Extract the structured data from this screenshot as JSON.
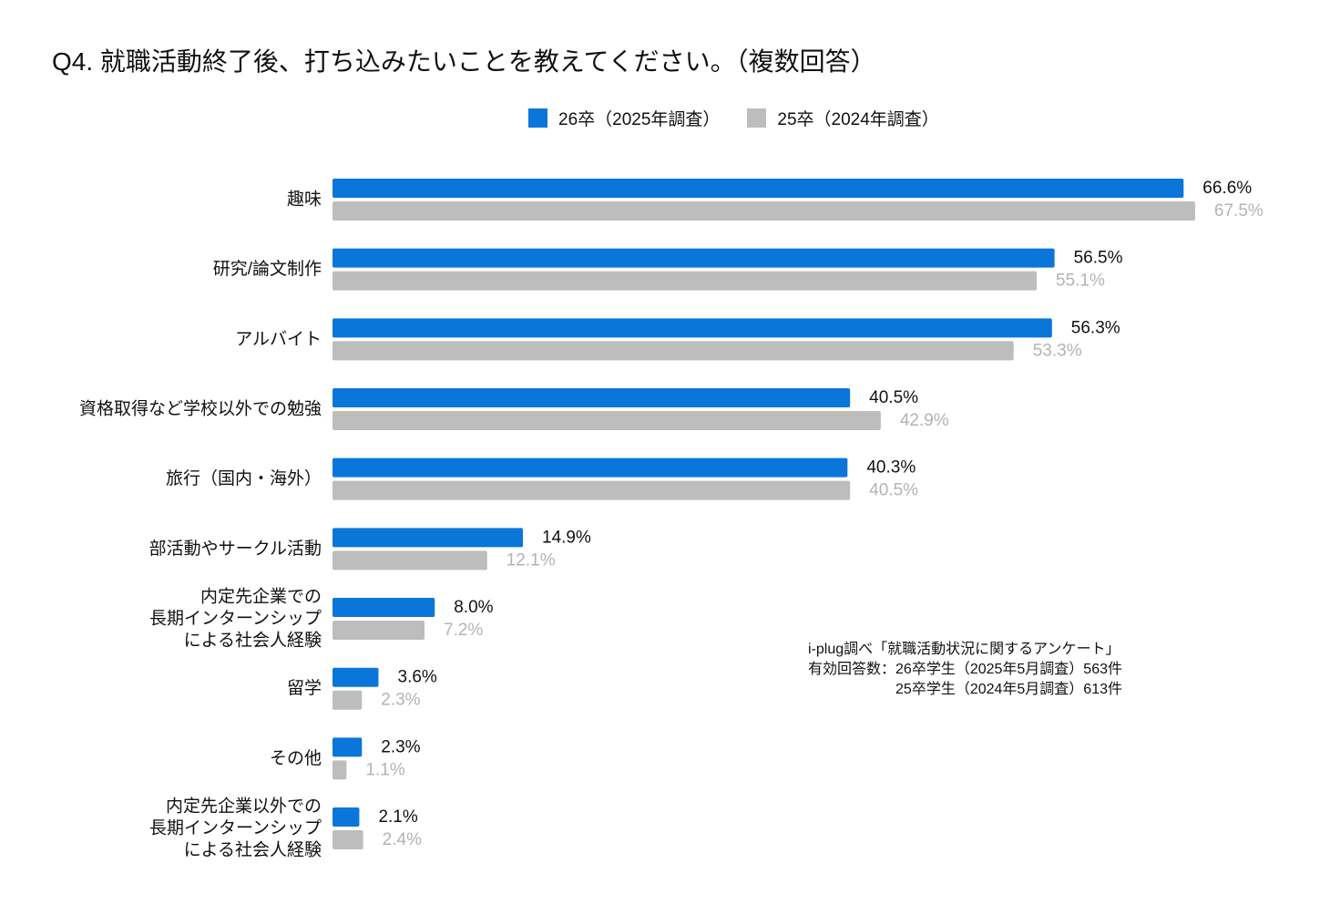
{
  "chart_data": {
    "type": "bar",
    "orientation": "horizontal",
    "title": "Q4. 就職活動終了後、打ち込みたいことを教えてください。（複数回答）",
    "xlabel": "",
    "ylabel": "",
    "xlim": [
      0,
      70
    ],
    "grid": false,
    "legend": "top",
    "value_suffix": "%",
    "categories": [
      [
        "趣味"
      ],
      [
        "研究/論文制作"
      ],
      [
        "アルバイト"
      ],
      [
        "資格取得など学校以外での勉強"
      ],
      [
        "旅行（国内・海外）"
      ],
      [
        "部活動やサークル活動"
      ],
      [
        "内定先企業での",
        "長期インターンシップ",
        "による社会人経験"
      ],
      [
        "留学"
      ],
      [
        "その他"
      ],
      [
        "内定先企業以外での",
        "長期インターンシップ",
        "による社会人経験"
      ]
    ],
    "series": [
      {
        "name": "26卒（2025年調査）",
        "values": [
          66.6,
          56.5,
          56.3,
          40.5,
          40.3,
          14.9,
          8.0,
          3.6,
          2.3,
          2.1
        ],
        "color": "#0b76d9",
        "label_color": "#111111"
      },
      {
        "name": "25卒（2024年調査）",
        "values": [
          67.5,
          55.1,
          53.3,
          42.9,
          40.5,
          12.1,
          7.2,
          2.3,
          1.1,
          2.4
        ],
        "color": "#bdbdbd",
        "label_color": "#b3b3b3"
      }
    ]
  },
  "source": {
    "line1": "i-plug調べ「就職活動状況に関するアンケート」",
    "count_label": "有効回答数：",
    "counts": [
      "26卒学生（2025年5月調査）563件",
      "25卒学生（2024年5月調査）613件"
    ]
  }
}
